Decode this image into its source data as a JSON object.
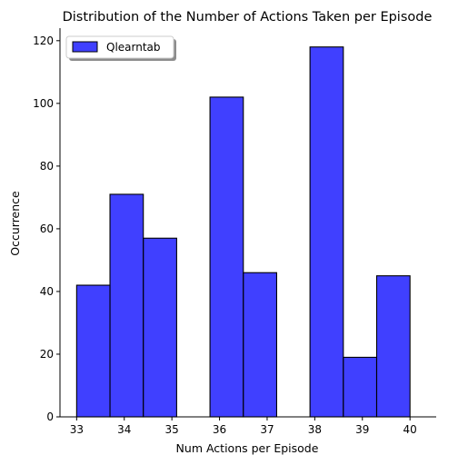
{
  "chart_data": {
    "type": "bar",
    "title": "Distribution of the Number of Actions Taken per Episode",
    "xlabel": "Num Actions per Episode",
    "ylabel": "Occurrence",
    "xlim": [
      32.65,
      40.55
    ],
    "ylim": [
      0,
      124
    ],
    "xticks": [
      33,
      34,
      35,
      36,
      37,
      38,
      39,
      40
    ],
    "yticks": [
      0,
      20,
      40,
      60,
      80,
      100,
      120
    ],
    "grid": false,
    "legend_position": "top-left",
    "bin_edges": [
      33,
      33.7,
      34.4,
      35.1,
      35.8,
      36.5,
      37.2,
      37.9,
      38.6,
      39.3,
      40.0
    ],
    "series": [
      {
        "name": "Qlearntab",
        "color": "#0000ff",
        "values": [
          42,
          71,
          57,
          0,
          102,
          46,
          0,
          118,
          19,
          45
        ]
      }
    ]
  }
}
